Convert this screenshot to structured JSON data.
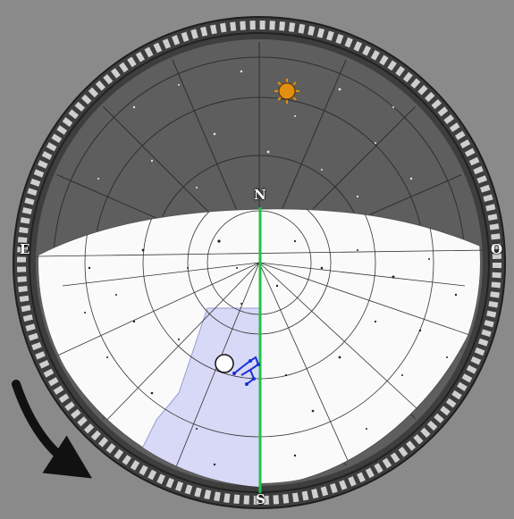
{
  "compass": {
    "north": "N",
    "south": "S",
    "east": "E",
    "west": "O"
  },
  "colors": {
    "background": "#8a8a8a",
    "night_sky": "#5e5e5e",
    "visible_sky": "#ffffff",
    "rim": "#3a3a3a",
    "meridian": "#1fc24a",
    "highlight_region": "#d7d9f6",
    "constellation": "#1a2fd6",
    "sun": "#e0900f",
    "rotation_arrow": "#111111"
  },
  "icons": {
    "sun": "sun-icon",
    "moon": "moon-marker-icon",
    "rotation": "rotate-clockwise-arrow-icon"
  }
}
